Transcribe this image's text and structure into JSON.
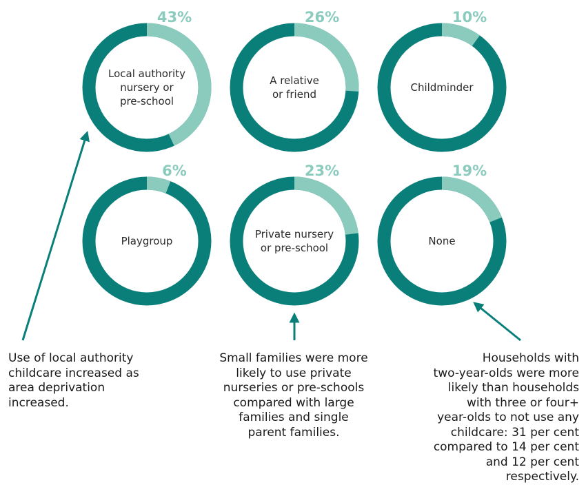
{
  "chart_data": {
    "type": "donut",
    "colors": {
      "highlight": "#8bcbbd",
      "remainder": "#0a7f7a"
    },
    "items": [
      {
        "label": "Local authority\nnursery or\npre-school",
        "value": 43,
        "value_label": "43%"
      },
      {
        "label": "A relative\nor friend",
        "value": 26,
        "value_label": "26%"
      },
      {
        "label": "Childminder",
        "value": 10,
        "value_label": "10%"
      },
      {
        "label": "Playgroup",
        "value": 6,
        "value_label": "6%"
      },
      {
        "label": "Private nursery\nor pre-school",
        "value": 23,
        "value_label": "23%"
      },
      {
        "label": "None",
        "value": 19,
        "value_label": "19%"
      }
    ]
  },
  "annotations": {
    "left": "Use of local authority\nchildcare increased as\narea deprivation\nincreased.",
    "middle": "Small families were more\nlikely to use private\nnurseries or pre-schools\ncompared with large\nfamilies and single\nparent families.",
    "right": "Households with\ntwo-year-olds were more\nlikely than households\nwith three or four+\nyear-olds to not use any\nchildcare: 31 per cent\ncompared to 14 per cent\nand 12 per cent\nrespectively."
  }
}
